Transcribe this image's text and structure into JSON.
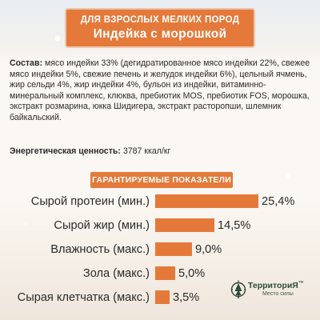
{
  "header": {
    "line1": "ДЛЯ ВЗРОСЛЫХ МЕЛКИХ ПОРОД",
    "line2": "Индейка с морошкой"
  },
  "composition": {
    "label": "Состав:",
    "text": " мясо индейки 33% (дегидратированное мясо индейки 22%, свежее мясо индейки 5%, свежие печень и желудок индейки 6%), цельный ячмень, жир сельди 4%, жир индейки 4%, бульон из индейки, витаминно-минеральный комплекс, клюква, пребиотик MOS, пребиотик FOS, морошка, экстракт розмарина, юкка Шидигера, экстракт расторопши, шлемник байкальский."
  },
  "energy": {
    "label": "Энергетическая ценность:",
    "value": " 3787 ккал/кг"
  },
  "guaranteed_title": "ГАРАНТИРУЕМЫЕ ПОКАЗАТЕЛИ",
  "indicators": [
    {
      "label": "Сырой протеин (мин.)",
      "value_text": "25,4%",
      "value": 25.4
    },
    {
      "label": "Сырой жир (мин.)",
      "value_text": "14,5%",
      "value": 14.5
    },
    {
      "label": "Влажность (макс.)",
      "value_text": "9,0%",
      "value": 9.0
    },
    {
      "label": "Зола (макс.)",
      "value_text": "5,0%",
      "value": 5.0
    },
    {
      "label": "Сырая клетчатка (макс.)",
      "value_text": "3,5%",
      "value": 3.5
    }
  ],
  "colors": {
    "accent": "#e4793a",
    "logo": "#2c4a3a"
  },
  "logo": {
    "name": "ТерриториЯ",
    "trademark": "™",
    "tagline": "Место силы",
    "icon": "tree-compass-icon"
  }
}
